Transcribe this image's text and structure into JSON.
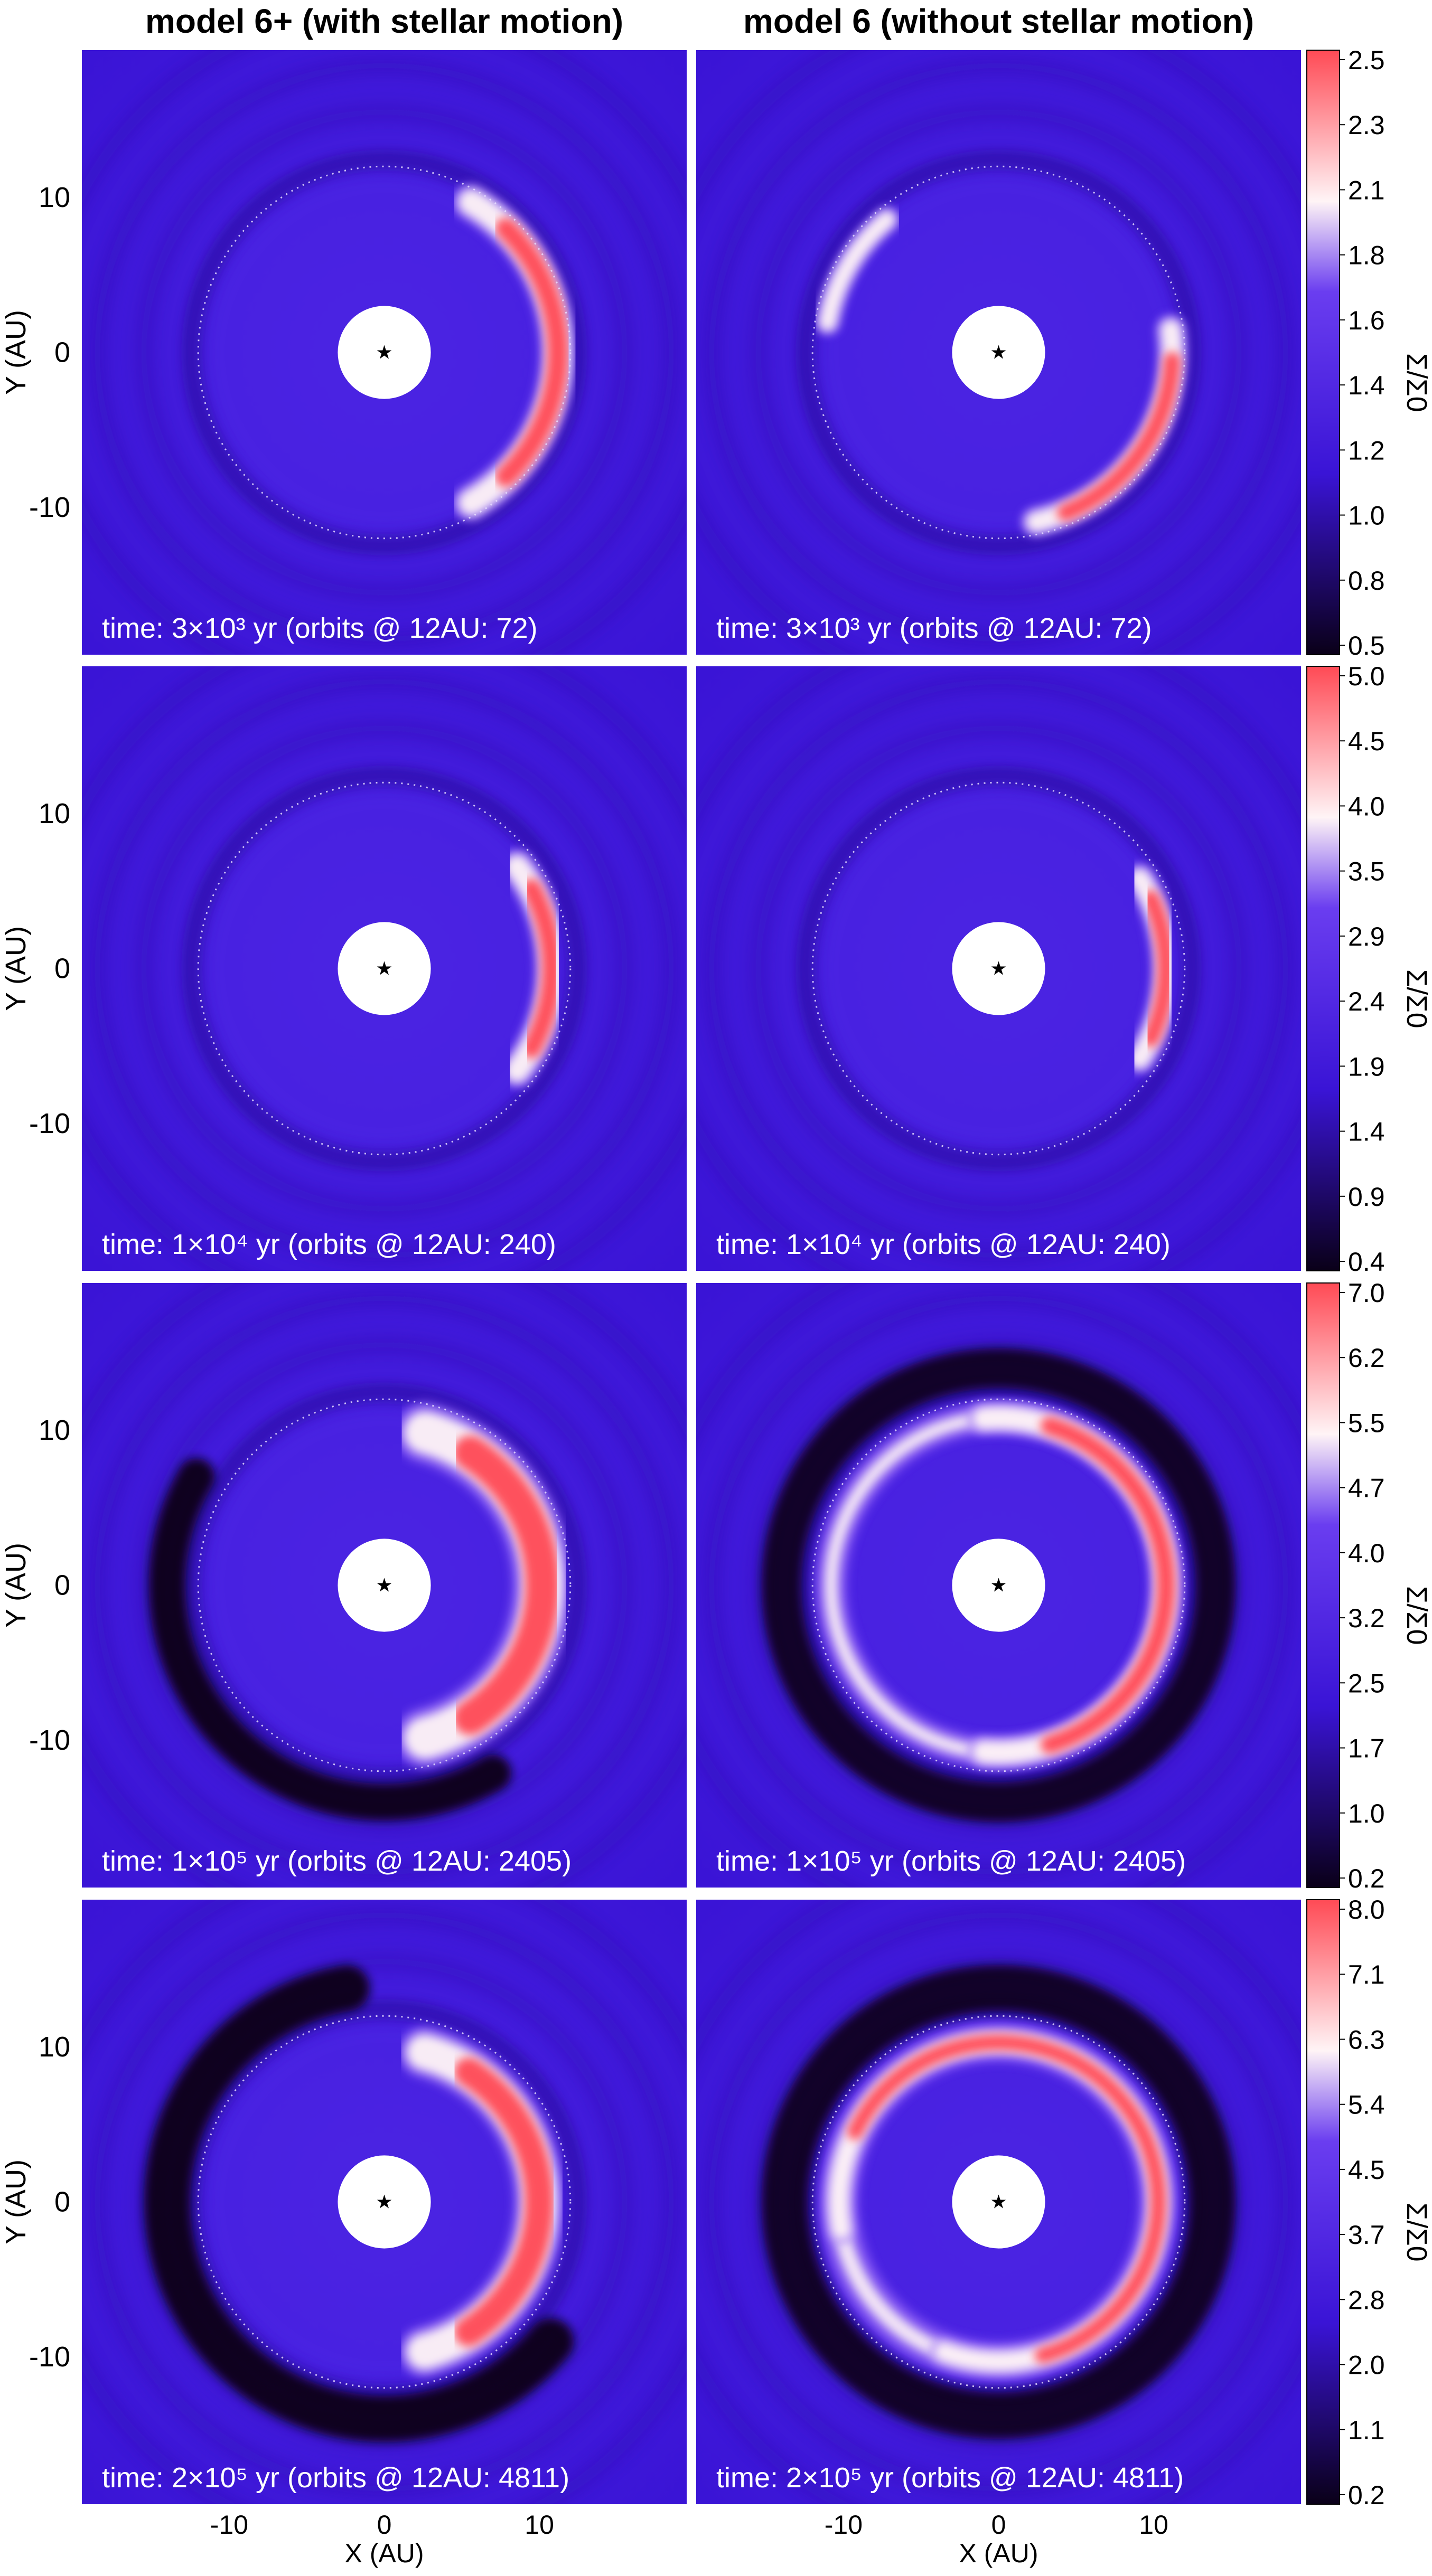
{
  "chart_data": {
    "type": "heatmap",
    "column_titles": [
      "model 6+ (with stellar motion)",
      "model 6 (without stellar motion)"
    ],
    "xlabel": "X (AU)",
    "ylabel": "Y (AU)",
    "colorbar_label": "Σ/Σ0",
    "xlim": [
      -19.5,
      19.5
    ],
    "ylim": [
      -19.5,
      19.5
    ],
    "x_ticks": [
      -10,
      0,
      10
    ],
    "y_ticks": [
      10,
      0,
      -10
    ],
    "inner_hole_radius_au": 3,
    "dotted_circle_radius_au": 12,
    "colors": {
      "background": "#3a14d6",
      "low": "#0a0018",
      "mid": "#6a3df0",
      "high": "#fff4f6",
      "max": "#ff4a55"
    },
    "rows": [
      {
        "colorbar_ticks": [
          "2.5",
          "2.3",
          "2.1",
          "1.8",
          "1.6",
          "1.4",
          "1.2",
          "1.0",
          "0.8",
          "0.5"
        ],
        "panels": [
          {
            "time_label": "time: 3×10³ yr (orbits @ 12AU: 72)",
            "features": [
              {
                "kind": "crescent",
                "center_deg": 0,
                "span_deg": 120,
                "radius_au": 11.2,
                "width_au": 1.6,
                "peak": "max"
              }
            ]
          },
          {
            "time_label": "time: 3×10³ yr (orbits @ 12AU: 72)",
            "features": [
              {
                "kind": "crescent",
                "center_deg": 150,
                "span_deg": 40,
                "radius_au": 11.2,
                "width_au": 1.1,
                "peak": "high"
              },
              {
                "kind": "crescent",
                "center_deg": -35,
                "span_deg": 85,
                "radius_au": 11.2,
                "width_au": 1.3,
                "peak": "max"
              }
            ]
          }
        ]
      },
      {
        "colorbar_ticks": [
          "5.0",
          "4.5",
          "4.0",
          "3.5",
          "2.9",
          "2.4",
          "1.9",
          "1.4",
          "0.9",
          "0.4"
        ],
        "panels": [
          {
            "time_label": "time: 1×10⁴ yr (orbits @ 12AU: 240)",
            "features": [
              {
                "kind": "crescent",
                "center_deg": 0,
                "span_deg": 75,
                "radius_au": 10.8,
                "width_au": 1.5,
                "peak": "max"
              }
            ]
          },
          {
            "time_label": "time: 1×10⁴ yr (orbits @ 12AU: 240)",
            "features": [
              {
                "kind": "crescent",
                "center_deg": 0,
                "span_deg": 65,
                "radius_au": 10.8,
                "width_au": 1.3,
                "peak": "max"
              }
            ]
          }
        ]
      },
      {
        "colorbar_ticks": [
          "7.0",
          "6.2",
          "5.5",
          "4.7",
          "4.0",
          "3.2",
          "2.5",
          "1.7",
          "1.0",
          "0.2"
        ],
        "panels": [
          {
            "time_label": "time: 1×10⁵ yr (orbits @ 12AU: 2405)",
            "features": [
              {
                "kind": "crescent",
                "center_deg": 0,
                "span_deg": 150,
                "radius_au": 10.2,
                "width_au": 2.6,
                "peak": "max"
              },
              {
                "kind": "dark_arc",
                "center_deg": -135,
                "span_deg": 150,
                "radius_au": 14,
                "width_au": 2.4
              }
            ]
          },
          {
            "time_label": "time: 1×10⁵ yr (orbits @ 12AU: 2405)",
            "features": [
              {
                "kind": "ring",
                "radius_au": 10.8,
                "width_au": 1.3,
                "peak": "high"
              },
              {
                "kind": "crescent",
                "center_deg": 0,
                "span_deg": 190,
                "radius_au": 10.8,
                "width_au": 1.4,
                "peak": "max"
              },
              {
                "kind": "dark_ring",
                "radius_au": 14,
                "width_au": 2.6
              }
            ]
          }
        ]
      },
      {
        "colorbar_ticks": [
          "8.0",
          "7.1",
          "6.3",
          "5.4",
          "4.5",
          "3.7",
          "2.8",
          "2.0",
          "1.1",
          "0.2"
        ],
        "panels": [
          {
            "time_label": "time: 2×10⁵ yr (orbits @ 12AU: 4811)",
            "features": [
              {
                "kind": "crescent",
                "center_deg": 0,
                "span_deg": 150,
                "radius_au": 10.0,
                "width_au": 2.2,
                "peak": "max"
              },
              {
                "kind": "dark_arc",
                "center_deg": -150,
                "span_deg": 220,
                "radius_au": 14,
                "width_au": 3.0
              }
            ]
          },
          {
            "time_label": "time: 2×10⁵ yr (orbits @ 12AU: 4811)",
            "features": [
              {
                "kind": "ring",
                "radius_au": 10.3,
                "width_au": 1.6,
                "peak": "high"
              },
              {
                "kind": "crescent",
                "center_deg": 40,
                "span_deg": 300,
                "radius_au": 10.3,
                "width_au": 1.2,
                "peak": "max"
              },
              {
                "kind": "dark_ring",
                "radius_au": 13.8,
                "width_au": 3.0
              }
            ]
          }
        ]
      }
    ]
  }
}
